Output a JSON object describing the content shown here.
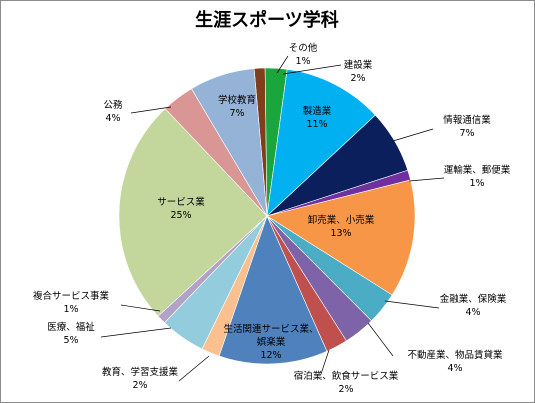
{
  "chart_data": {
    "type": "pie",
    "title": "生涯スポーツ学科",
    "start_angle_deg": -5,
    "direction": "clockwise",
    "slices": [
      {
        "label": "その他",
        "pct": "1%",
        "value": 1.2,
        "color": "#7f3f1c"
      },
      {
        "label": "建設業",
        "pct": "2%",
        "value": 2.4,
        "color": "#1aa63c"
      },
      {
        "label": "製造業",
        "pct": "11%",
        "value": 11.0,
        "color": "#00b0f0"
      },
      {
        "label": "情報通信業",
        "pct": "7%",
        "value": 7.0,
        "color": "#0b1f5c"
      },
      {
        "label": "運輸業、郵便業",
        "pct": "1%",
        "value": 1.1,
        "color": "#7030a0"
      },
      {
        "label": "卸売業、小売業",
        "pct": "13%",
        "value": 13.0,
        "color": "#f79646"
      },
      {
        "label": "金融業、保険業",
        "pct": "4%",
        "value": 3.6,
        "color": "#4bacc6"
      },
      {
        "label": "不動産業、物品賃貸業",
        "pct": "4%",
        "value": 3.5,
        "color": "#7e63a8"
      },
      {
        "label": "宿泊業、飲食サービス業",
        "pct": "2%",
        "value": 2.4,
        "color": "#c0504d"
      },
      {
        "label": "生活関連サービス業、娯楽業",
        "pct": "12%",
        "value": 12.0,
        "color": "#4f81bd"
      },
      {
        "label": "教育、学習支援業",
        "pct": "2%",
        "value": 2.0,
        "color": "#fac090"
      },
      {
        "label": "医療、福祉",
        "pct": "5%",
        "value": 5.0,
        "color": "#93cddd"
      },
      {
        "label": "複合サービス事業",
        "pct": "1%",
        "value": 1.0,
        "color": "#b3a2c7"
      },
      {
        "label": "サービス業",
        "pct": "25%",
        "value": 25.0,
        "color": "#c3d69b"
      },
      {
        "label": "公務",
        "pct": "4%",
        "value": 3.6,
        "color": "#d99694"
      },
      {
        "label": "学校教育",
        "pct": "7%",
        "value": 7.2,
        "color": "#95b3d7"
      }
    ]
  }
}
